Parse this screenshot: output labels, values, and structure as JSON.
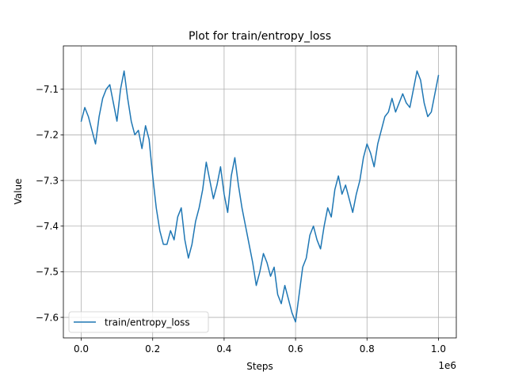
{
  "chart_data": {
    "type": "line",
    "title": "Plot for train/entropy_loss",
    "xlabel": "Steps",
    "ylabel": "Value",
    "x_offset_label": "1e6",
    "xlim": [
      -0.05,
      1.05
    ],
    "ylim": [
      -7.645,
      -7.005
    ],
    "x_ticks": [
      {
        "value": 0.0,
        "label": "0.0"
      },
      {
        "value": 0.2,
        "label": "0.2"
      },
      {
        "value": 0.4,
        "label": "0.4"
      },
      {
        "value": 0.6,
        "label": "0.6"
      },
      {
        "value": 0.8,
        "label": "0.8"
      },
      {
        "value": 1.0,
        "label": "1.0"
      }
    ],
    "y_ticks": [
      {
        "value": -7.1,
        "label": "−7.1"
      },
      {
        "value": -7.2,
        "label": "−7.2"
      },
      {
        "value": -7.3,
        "label": "−7.3"
      },
      {
        "value": -7.4,
        "label": "−7.4"
      },
      {
        "value": -7.5,
        "label": "−7.5"
      },
      {
        "value": -7.6,
        "label": "−7.6"
      }
    ],
    "grid": true,
    "legend_position": "lower-left",
    "series": [
      {
        "name": "train/entropy_loss",
        "color": "#1f77b4",
        "x": [
          0.0,
          0.01,
          0.02,
          0.03,
          0.04,
          0.05,
          0.06,
          0.07,
          0.08,
          0.09,
          0.1,
          0.11,
          0.12,
          0.13,
          0.14,
          0.15,
          0.16,
          0.17,
          0.18,
          0.19,
          0.2,
          0.21,
          0.22,
          0.23,
          0.24,
          0.25,
          0.26,
          0.27,
          0.28,
          0.29,
          0.3,
          0.31,
          0.32,
          0.33,
          0.34,
          0.35,
          0.36,
          0.37,
          0.38,
          0.39,
          0.4,
          0.41,
          0.42,
          0.43,
          0.44,
          0.45,
          0.46,
          0.47,
          0.48,
          0.49,
          0.5,
          0.51,
          0.52,
          0.53,
          0.54,
          0.55,
          0.56,
          0.57,
          0.58,
          0.59,
          0.6,
          0.61,
          0.62,
          0.63,
          0.64,
          0.65,
          0.66,
          0.67,
          0.68,
          0.69,
          0.7,
          0.71,
          0.72,
          0.73,
          0.74,
          0.75,
          0.76,
          0.77,
          0.78,
          0.79,
          0.8,
          0.81,
          0.82,
          0.83,
          0.84,
          0.85,
          0.86,
          0.87,
          0.88,
          0.89,
          0.9,
          0.91,
          0.92,
          0.93,
          0.94,
          0.95,
          0.96,
          0.97,
          0.98,
          0.99,
          1.0
        ],
        "values": [
          -7.17,
          -7.14,
          -7.16,
          -7.19,
          -7.22,
          -7.16,
          -7.12,
          -7.1,
          -7.09,
          -7.13,
          -7.17,
          -7.1,
          -7.06,
          -7.12,
          -7.17,
          -7.2,
          -7.19,
          -7.23,
          -7.18,
          -7.21,
          -7.29,
          -7.36,
          -7.41,
          -7.44,
          -7.44,
          -7.41,
          -7.43,
          -7.38,
          -7.36,
          -7.43,
          -7.47,
          -7.44,
          -7.39,
          -7.36,
          -7.32,
          -7.26,
          -7.3,
          -7.34,
          -7.31,
          -7.27,
          -7.33,
          -7.37,
          -7.29,
          -7.25,
          -7.31,
          -7.36,
          -7.4,
          -7.44,
          -7.48,
          -7.53,
          -7.5,
          -7.46,
          -7.48,
          -7.51,
          -7.49,
          -7.55,
          -7.57,
          -7.53,
          -7.56,
          -7.59,
          -7.61,
          -7.55,
          -7.49,
          -7.47,
          -7.42,
          -7.4,
          -7.43,
          -7.45,
          -7.4,
          -7.36,
          -7.38,
          -7.32,
          -7.29,
          -7.33,
          -7.31,
          -7.34,
          -7.37,
          -7.33,
          -7.3,
          -7.25,
          -7.22,
          -7.24,
          -7.27,
          -7.22,
          -7.19,
          -7.16,
          -7.15,
          -7.12,
          -7.15,
          -7.13,
          -7.11,
          -7.13,
          -7.14,
          -7.1,
          -7.06,
          -7.08,
          -7.13,
          -7.16,
          -7.15,
          -7.11,
          -7.07
        ]
      }
    ]
  }
}
